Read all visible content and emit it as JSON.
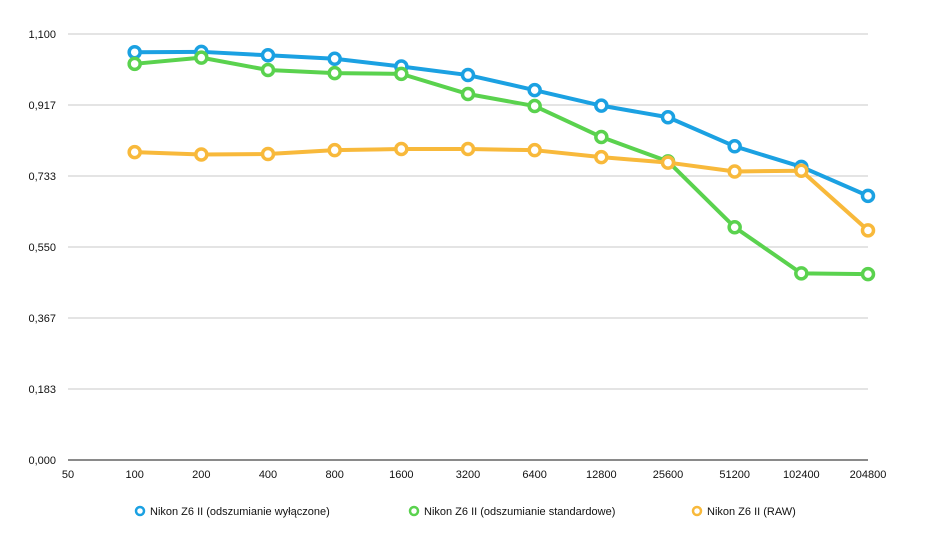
{
  "chart_data": {
    "type": "line",
    "title": "",
    "xlabel": "",
    "ylabel": "",
    "x_ticks": [
      "50",
      "100",
      "200",
      "400",
      "800",
      "1600",
      "3200",
      "6400",
      "12800",
      "25600",
      "51200",
      "102400",
      "204800"
    ],
    "y_ticks": [
      "0,000",
      "0,183",
      "0,367",
      "0,550",
      "0,733",
      "0,917",
      "1,100"
    ],
    "ylim": [
      0,
      1.1
    ],
    "grid": "horizontal",
    "legend_position": "bottom",
    "x": [
      100,
      200,
      400,
      800,
      1600,
      3200,
      6400,
      12800,
      25600,
      51200,
      102400,
      204800
    ],
    "series": [
      {
        "name": "Nikon Z6 II (odszumianie wyłączone)",
        "color": "#1ba1e2",
        "values": [
          1.053,
          1.054,
          1.045,
          1.036,
          1.016,
          0.994,
          0.955,
          0.915,
          0.885,
          0.81,
          0.757,
          0.682
        ]
      },
      {
        "name": "Nikon Z6 II (odszumianie standardowe)",
        "color": "#5ad24e",
        "values": [
          1.023,
          1.039,
          1.007,
          0.999,
          0.997,
          0.945,
          0.914,
          0.834,
          0.771,
          0.601,
          0.482,
          0.48
        ]
      },
      {
        "name": "Nikon Z6 II (RAW)",
        "color": "#f8b93b",
        "values": [
          0.795,
          0.789,
          0.79,
          0.8,
          0.803,
          0.803,
          0.8,
          0.782,
          0.768,
          0.745,
          0.747,
          0.593
        ]
      }
    ]
  }
}
